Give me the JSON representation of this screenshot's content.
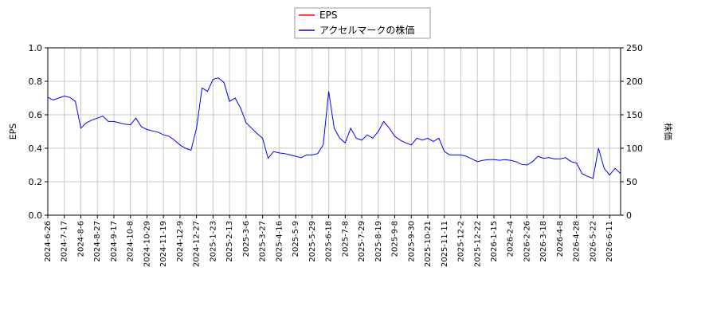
{
  "chart_data": {
    "type": "line",
    "y_label": "EPS",
    "y2_label": "株価",
    "categories": [
      "2024-6-26",
      null,
      null,
      "2024-7-17",
      null,
      null,
      "2024-8-6",
      null,
      null,
      "2024-8-27",
      null,
      null,
      "2024-9-17",
      null,
      null,
      "2024-10-8",
      null,
      null,
      "2024-10-29",
      null,
      null,
      "2024-11-19",
      null,
      null,
      "2024-12-9",
      null,
      null,
      "2024-12-27",
      null,
      null,
      "2025-1-23",
      null,
      null,
      "2025-2-13",
      null,
      null,
      "2025-3-6",
      null,
      null,
      "2025-3-27",
      null,
      null,
      "2025-4-16",
      null,
      null,
      "2025-5-9",
      null,
      null,
      "2025-5-29",
      null,
      null,
      "2025-6-18",
      null,
      null,
      "2025-7-8",
      null,
      null,
      "2025-7-29",
      null,
      null,
      "2025-8-19",
      null,
      null,
      "2025-9-8",
      null,
      null,
      "2025-9-30",
      null,
      null,
      "2025-10-21",
      null,
      null,
      "2025-11-11",
      null,
      null,
      "2025-12-2",
      null,
      null,
      "2025-12-22",
      null,
      null,
      "2026-1-15",
      null,
      null,
      "2026-2-4",
      null,
      null,
      "2026-2-26",
      null,
      null,
      "2026-3-18",
      null,
      null,
      "2026-4-8",
      null,
      null,
      "2026-4-28",
      null,
      null,
      "2026-5-22",
      null,
      null,
      "2026-6-11",
      null,
      null
    ],
    "series": [
      {
        "name": "EPS",
        "color": "#ff0000",
        "values": [
          null,
          null,
          null,
          null,
          null,
          null,
          null,
          null,
          null,
          null,
          null,
          null,
          null,
          null,
          null,
          null,
          null,
          null,
          null,
          null,
          null,
          null,
          null,
          null,
          null,
          null,
          null,
          null,
          null,
          null,
          null,
          null,
          null,
          null,
          null,
          null,
          null,
          null,
          null,
          null,
          null,
          null,
          null,
          null,
          null,
          null,
          null,
          null,
          null,
          null,
          null,
          null,
          null,
          null,
          null,
          null,
          null,
          null,
          null,
          null,
          null,
          null,
          null,
          null,
          null,
          null,
          null,
          null,
          null,
          null,
          null,
          null,
          null,
          null,
          null,
          null,
          null,
          null,
          null,
          null,
          null,
          null,
          null,
          null,
          null,
          null,
          null,
          null,
          null,
          null,
          null,
          null,
          null,
          null,
          null,
          null,
          null,
          null,
          null,
          null,
          null,
          null,
          null,
          null,
          null
        ]
      },
      {
        "name": "アクセルマークの株価",
        "color": "#0000ff",
        "axis": "y2",
        "values": [
          176,
          172,
          175,
          178,
          176,
          170,
          130,
          138,
          142,
          145,
          148,
          140,
          140,
          138,
          136,
          135,
          145,
          132,
          128,
          126,
          124,
          120,
          118,
          112,
          105,
          100,
          97,
          130,
          190,
          185,
          203,
          205,
          198,
          170,
          175,
          160,
          138,
          130,
          122,
          115,
          85,
          95,
          93,
          92,
          90,
          88,
          86,
          90,
          90,
          92,
          105,
          185,
          130,
          115,
          108,
          130,
          115,
          112,
          120,
          115,
          125,
          140,
          130,
          118,
          112,
          108,
          105,
          115,
          112,
          115,
          110,
          115,
          95,
          90,
          90,
          90,
          88,
          84,
          80,
          82,
          83,
          83,
          82,
          83,
          82,
          80,
          76,
          75,
          80,
          88,
          85,
          86,
          84,
          84,
          86,
          80,
          78,
          62,
          58,
          55,
          100,
          70,
          60,
          70,
          62
        ]
      }
    ],
    "ylim": [
      0,
      1
    ],
    "yticks": [
      {
        "value": 0,
        "label": "0.0"
      },
      {
        "value": 0.2,
        "label": "0.2"
      },
      {
        "value": 0.4,
        "label": "0.4"
      },
      {
        "value": 0.6,
        "label": "0.6"
      },
      {
        "value": 0.8,
        "label": "0.8"
      },
      {
        "value": 1,
        "label": "1.0"
      }
    ],
    "y2lim": [
      0,
      250
    ],
    "y2ticks": [
      0,
      50,
      100,
      150,
      200,
      250
    ],
    "grid": true
  }
}
